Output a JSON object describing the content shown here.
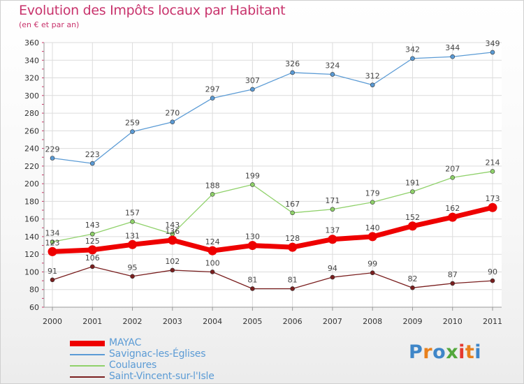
{
  "header": {
    "title": "Evolution des Impôts locaux par Habitant",
    "subtitle": "(en € et par an)"
  },
  "logo": {
    "text": "Proxiti",
    "colors": [
      "#3f86c8",
      "#e8801c",
      "#3f86c8",
      "#53a83c",
      "#e5392f",
      "#e8801c",
      "#3f86c8"
    ]
  },
  "chart_data": {
    "type": "line",
    "x": [
      "2000",
      "2001",
      "2002",
      "2003",
      "2004",
      "2005",
      "2006",
      "2007",
      "2008",
      "2009",
      "2010",
      "2011"
    ],
    "ylim": [
      60,
      360
    ],
    "yticks": [
      60,
      80,
      100,
      120,
      140,
      160,
      180,
      200,
      220,
      240,
      260,
      280,
      300,
      320,
      340,
      360
    ],
    "grid": true,
    "legend_position": "bottom-left",
    "series": [
      {
        "name": "MAYAC",
        "values": [
          123,
          125,
          131,
          136,
          124,
          130,
          128,
          137,
          140,
          152,
          162,
          173
        ],
        "color": "#ee0000",
        "emphasis": true
      },
      {
        "name": "Savignac-les-Églises",
        "values": [
          229,
          223,
          259,
          270,
          297,
          307,
          326,
          324,
          312,
          342,
          344,
          349
        ],
        "color": "#5b9bd5",
        "emphasis": false
      },
      {
        "name": "Coulaures",
        "values": [
          134,
          143,
          157,
          143,
          188,
          199,
          167,
          171,
          179,
          191,
          207,
          214
        ],
        "color": "#8fd16a",
        "emphasis": false
      },
      {
        "name": "Saint-Vincent-sur-l'Isle",
        "values": [
          91,
          106,
          95,
          102,
          100,
          81,
          81,
          94,
          99,
          82,
          87,
          90
        ],
        "color": "#7a1f1f",
        "emphasis": false
      }
    ],
    "data_labels": [
      [
        "123",
        "125",
        "131",
        "136",
        "124",
        "130",
        "128",
        "137",
        "140",
        "152",
        "162",
        "173"
      ],
      [
        "229",
        "223",
        "259",
        "270",
        "297",
        "307",
        "326",
        "324",
        "312",
        "342",
        "344",
        "349"
      ],
      [
        "134",
        "143",
        "157",
        "143",
        "188",
        "199",
        "167",
        "171",
        "179",
        "191",
        "207",
        "214"
      ],
      [
        "91",
        "106",
        "95",
        "102",
        "100",
        "81",
        "81",
        "94",
        "99",
        "82",
        "87",
        "90"
      ]
    ]
  }
}
